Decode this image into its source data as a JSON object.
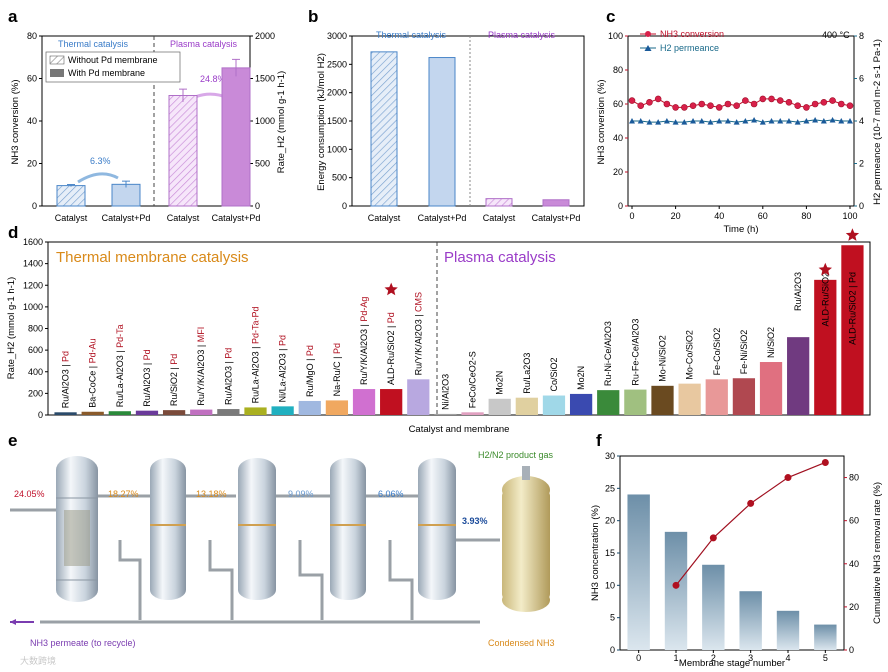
{
  "panel_labels": {
    "a": "a",
    "b": "b",
    "c": "c",
    "d": "d",
    "e": "e",
    "f": "f"
  },
  "colors": {
    "thermal": "#3a7cc8",
    "plasma": "#9a3cc8",
    "red": "#c0102a",
    "teal": "#1a6a8a",
    "orange": "#d98a1a",
    "star": "#b01020",
    "bluebar": "#b8cde4",
    "purplebar": "#c98ad8"
  },
  "chart_data": [
    {
      "id": "a",
      "type": "bar",
      "categories": [
        "Catalyst",
        "Catalyst+Pd",
        "Catalyst",
        "Catalyst+Pd"
      ],
      "group_labels": [
        "Thermal catalysis",
        "Plasma catalysis"
      ],
      "series": [
        {
          "name": "NH3 conversion",
          "values": [
            9.6,
            10.2,
            52,
            65
          ],
          "errors": [
            0.5,
            1.5,
            3,
            4
          ]
        }
      ],
      "ylabel": "NH3 conversion (%)",
      "ylim": [
        0,
        80
      ],
      "yticks": [
        "0",
        "20",
        "40",
        "60",
        "80"
      ],
      "ylabel_right": "Rate_H2 (mmol g-1 h-1)",
      "ylim_right": [
        0,
        2000
      ],
      "yticks_right": [
        "0",
        "500",
        "1000",
        "1500",
        "2000"
      ],
      "legend": [
        "Without Pd membrane",
        "With Pd membrane"
      ],
      "annotations": [
        "6.3%",
        "24.8%"
      ]
    },
    {
      "id": "b",
      "type": "bar",
      "categories": [
        "Catalyst",
        "Catalyst+Pd",
        "Catalyst",
        "Catalyst+Pd"
      ],
      "group_labels": [
        "Thermal catalysis",
        "Plasma catalysis"
      ],
      "values": [
        2720,
        2620,
        130,
        110
      ],
      "ylabel": "Energy consumption (kJ/mol H2)",
      "ylim": [
        0,
        3000
      ],
      "yticks": [
        "0",
        "500",
        "1000",
        "1500",
        "2000",
        "2500",
        "3000"
      ]
    },
    {
      "id": "c",
      "type": "line",
      "x": [
        0,
        4,
        8,
        12,
        16,
        20,
        24,
        28,
        32,
        36,
        40,
        44,
        48,
        52,
        56,
        60,
        64,
        68,
        72,
        76,
        80,
        84,
        88,
        92,
        96,
        100
      ],
      "series": [
        {
          "name": "NH3 conversion",
          "values": [
            62,
            59,
            61,
            63,
            60,
            58,
            58,
            59,
            60,
            59,
            58,
            60,
            59,
            62,
            60,
            63,
            63,
            62,
            61,
            59,
            58,
            60,
            61,
            62,
            60,
            59
          ]
        },
        {
          "name": "H2 permeance",
          "values": [
            4.0,
            4.0,
            3.95,
            3.95,
            4.0,
            3.95,
            3.95,
            4.0,
            4.0,
            3.95,
            4.0,
            4.0,
            3.95,
            4.0,
            4.05,
            3.95,
            4.0,
            4.0,
            4.0,
            3.95,
            4.0,
            4.05,
            4.0,
            4.05,
            4.0,
            4.0
          ]
        }
      ],
      "temperature": "400 °C",
      "xlabel": "Time (h)",
      "xticks": [
        "0",
        "20",
        "40",
        "60",
        "80",
        "100"
      ],
      "ylabel": "NH3 conversion (%)",
      "ylim": [
        0,
        100
      ],
      "yticks": [
        "0",
        "20",
        "40",
        "60",
        "80",
        "100"
      ],
      "ylabel_right": "H2 permeance (10-7 mol m-2 s-1 Pa-1)",
      "ylim_right": [
        0,
        8
      ],
      "yticks_right": [
        "0",
        "2",
        "4",
        "6",
        "8"
      ]
    },
    {
      "id": "d",
      "type": "bar",
      "group_labels": [
        "Thermal membrane catalysis",
        "Plasma catalysis"
      ],
      "xlabel": "Catalyst and membrane",
      "ylabel": "Rate_H2 (mmol g-1 h-1)",
      "ylim": [
        0,
        1600
      ],
      "yticks": [
        "0",
        "200",
        "400",
        "600",
        "800",
        "1000",
        "1200",
        "1400",
        "1600"
      ],
      "items": [
        {
          "cat": "Ru/Al2O3",
          "mem": "Pd",
          "value": 25,
          "color": "#2a4a6a",
          "group": "thermal"
        },
        {
          "cat": "Ba-CoCe",
          "mem": "Pd-Au",
          "value": 30,
          "color": "#8a5a2a",
          "group": "thermal"
        },
        {
          "cat": "Ru/La-Al2O3",
          "mem": "Pd-Ta",
          "value": 35,
          "color": "#2a8a3a",
          "group": "thermal"
        },
        {
          "cat": "Ru/Al2O3",
          "mem": "Pd",
          "value": 40,
          "color": "#6a3a9a",
          "group": "thermal"
        },
        {
          "cat": "Ru/SiO2",
          "mem": "Pd",
          "value": 45,
          "color": "#7a4a3a",
          "group": "thermal"
        },
        {
          "cat": "Ru/Y/K/Al2O3",
          "mem": "MFI",
          "value": 50,
          "color": "#c070c0",
          "group": "thermal"
        },
        {
          "cat": "Ru/Al2O3",
          "mem": "Pd",
          "value": 55,
          "color": "#7a7a7a",
          "group": "thermal"
        },
        {
          "cat": "Ru/La-Al2O3",
          "mem": "Pd-Ta-Pd",
          "value": 70,
          "color": "#aab020",
          "group": "thermal"
        },
        {
          "cat": "Ni/La-Al2O3",
          "mem": "Pd",
          "value": 80,
          "color": "#20b0c0",
          "group": "thermal"
        },
        {
          "cat": "Ru/MgO",
          "mem": "Pd",
          "value": 130,
          "color": "#a0b8e0",
          "group": "thermal"
        },
        {
          "cat": "Na-Ru/C",
          "mem": "Pd",
          "value": 135,
          "color": "#f0a860",
          "group": "thermal"
        },
        {
          "cat": "Ru/Y/K/Al2O3",
          "mem": "Pd-Ag",
          "value": 240,
          "color": "#d070d0",
          "group": "thermal"
        },
        {
          "cat": "ALD-Ru/SiO2",
          "mem": "Pd",
          "value": 240,
          "color": "#c01020",
          "group": "thermal",
          "star": true
        },
        {
          "cat": "Ru/Y/K/Al2O3",
          "mem": "CMS",
          "value": 330,
          "color": "#b8a8e0",
          "group": "thermal"
        },
        {
          "cat": "Ni/Al2O3",
          "mem": "",
          "value": 10,
          "color": "#a0a0a0",
          "group": "plasma"
        },
        {
          "cat": "FeCo/CeO2-S",
          "mem": "",
          "value": 25,
          "color": "#e0a0c0",
          "group": "plasma"
        },
        {
          "cat": "Mo2N",
          "mem": "",
          "value": 150,
          "color": "#c8c8c8",
          "group": "plasma"
        },
        {
          "cat": "Ru/La2O3",
          "mem": "",
          "value": 160,
          "color": "#e0d0a0",
          "group": "plasma"
        },
        {
          "cat": "Co/SiO2",
          "mem": "",
          "value": 180,
          "color": "#a0d8e8",
          "group": "plasma"
        },
        {
          "cat": "Mo2N",
          "mem": "",
          "value": 195,
          "color": "#3a4ab0",
          "group": "plasma"
        },
        {
          "cat": "Ru-Ni-Ce/Al2O3",
          "mem": "",
          "value": 230,
          "color": "#3a8a3a",
          "group": "plasma"
        },
        {
          "cat": "Ru-Fe-Ce/Al2O3",
          "mem": "",
          "value": 235,
          "color": "#a0c080",
          "group": "plasma"
        },
        {
          "cat": "Mo-Ni/SiO2",
          "mem": "",
          "value": 270,
          "color": "#6a4a20",
          "group": "plasma"
        },
        {
          "cat": "Mo-Co/SiO2",
          "mem": "",
          "value": 290,
          "color": "#e8c8a0",
          "group": "plasma"
        },
        {
          "cat": "Fe-Co/SiO2",
          "mem": "",
          "value": 330,
          "color": "#e89898",
          "group": "plasma"
        },
        {
          "cat": "Fe-Ni/SiO2",
          "mem": "",
          "value": 340,
          "color": "#b04850",
          "group": "plasma"
        },
        {
          "cat": "Ni/SiO2",
          "mem": "",
          "value": 490,
          "color": "#e07080",
          "group": "plasma"
        },
        {
          "cat": "Ru/Al2O3",
          "mem": "",
          "value": 720,
          "color": "#703a80",
          "group": "plasma"
        },
        {
          "cat": "ALD-Ru/SiO2",
          "mem": "",
          "value": 1250,
          "color": "#c01020",
          "group": "plasma",
          "star": true
        },
        {
          "cat": "ALD-Ru/SiO2 | Pd",
          "mem": "",
          "value": 1570,
          "color": "#c01020",
          "group": "plasma",
          "star": true
        }
      ]
    },
    {
      "id": "f",
      "type": "bar",
      "categories": [
        "0",
        "1",
        "2",
        "3",
        "4",
        "5"
      ],
      "values": [
        24.05,
        18.27,
        13.18,
        9.09,
        6.06,
        3.93
      ],
      "line_x": [
        "1",
        "2",
        "3",
        "4",
        "5"
      ],
      "line_values": [
        30,
        52,
        68,
        80,
        87
      ],
      "xlabel": "Membrane stage number",
      "ylabel": "NH3 concentration (%)",
      "ylim": [
        0,
        30
      ],
      "yticks": [
        "0",
        "5",
        "10",
        "15",
        "20",
        "25",
        "30"
      ],
      "ylabel_right": "Cumulative NH3 removal rate (%)",
      "ylim_right": [
        0,
        90
      ],
      "yticks_right": [
        "0",
        "20",
        "40",
        "60",
        "80"
      ]
    }
  ],
  "schematic": {
    "stage_labels": [
      "24.05%",
      "18.27%",
      "13.18%",
      "9.09%",
      "6.06%",
      "3.93%"
    ],
    "product_gas": "H2/N2 product gas",
    "permeate": "NH3 permeate (to recycle)",
    "condensed": "Condensed NH3"
  },
  "watermark": "大数跨境"
}
